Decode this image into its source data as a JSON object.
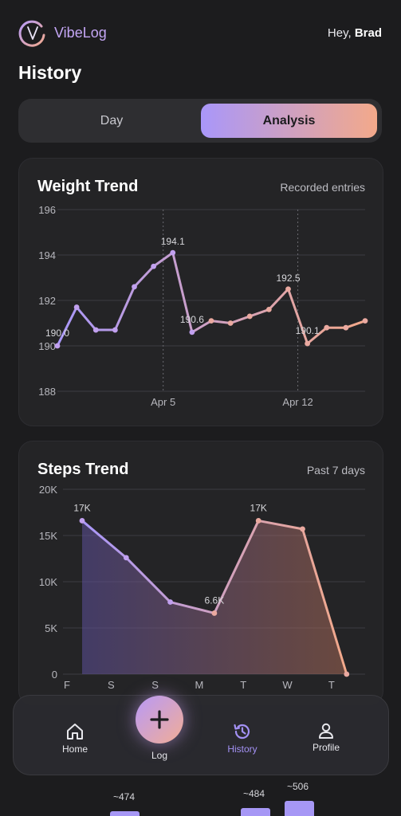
{
  "header": {
    "app_name": "VibeLog",
    "greeting": "Hey,",
    "user_name": "Brad"
  },
  "page": {
    "title": "History"
  },
  "segmented": {
    "day_label": "Day",
    "analysis_label": "Analysis",
    "selected": "Analysis"
  },
  "weight_card": {
    "title": "Weight Trend",
    "subtitle": "Recorded entries"
  },
  "steps_card": {
    "title": "Steps Trend",
    "subtitle": "Past 7 days"
  },
  "partial_chart": {
    "labels": [
      "~474",
      "~484",
      "~506"
    ]
  },
  "nav": {
    "home_label": "Home",
    "log_label": "Log",
    "history_label": "History",
    "profile_label": "Profile",
    "active": "History"
  },
  "colors": {
    "accent_start": "#a997fa",
    "accent_end": "#f3a98a",
    "background": "#1c1c1e",
    "card": "#242426"
  },
  "icons": [
    "vibelog-logo-icon",
    "home-icon",
    "plus-icon",
    "history-icon",
    "profile-icon"
  ],
  "chart_data": [
    {
      "type": "line",
      "title": "Weight Trend",
      "ylim": [
        188,
        196
      ],
      "y_ticks": [
        188,
        190,
        192,
        194,
        196
      ],
      "x_tick_labels": [
        {
          "label": "Apr 5",
          "x": 5
        },
        {
          "label": "Apr 12",
          "x": 12
        }
      ],
      "x": [
        -0.5,
        0.5,
        1.5,
        2.5,
        3.5,
        4.5,
        5.5,
        6.5,
        7.5,
        8.5,
        9.5,
        10.5,
        11.5,
        12.5,
        13.5,
        14.5,
        15.5
      ],
      "values": [
        190.0,
        191.7,
        190.7,
        190.7,
        192.6,
        193.5,
        194.1,
        190.6,
        191.1,
        191.0,
        191.3,
        191.6,
        192.5,
        190.1,
        190.8,
        190.8,
        191.1
      ],
      "point_labels": [
        {
          "index": 0,
          "text": "190.0"
        },
        {
          "index": 6,
          "text": "194.1"
        },
        {
          "index": 7,
          "text": "190.6"
        },
        {
          "index": 12,
          "text": "192.5"
        },
        {
          "index": 13,
          "text": "190.1"
        }
      ],
      "grid": true
    },
    {
      "type": "area",
      "title": "Steps Trend",
      "categories": [
        "F",
        "S",
        "S",
        "M",
        "T",
        "W",
        "T"
      ],
      "values": [
        16600,
        12600,
        7800,
        6600,
        16600,
        15700,
        0
      ],
      "ylim": [
        0,
        20000
      ],
      "y_ticks": [
        0,
        5000,
        10000,
        15000,
        20000
      ],
      "y_tick_labels": [
        "0",
        "5K",
        "10K",
        "15K",
        "20K"
      ],
      "point_labels": [
        {
          "index": 0,
          "text": "17K"
        },
        {
          "index": 3,
          "text": "6.6K"
        },
        {
          "index": 4,
          "text": "17K"
        }
      ],
      "grid": true
    }
  ]
}
